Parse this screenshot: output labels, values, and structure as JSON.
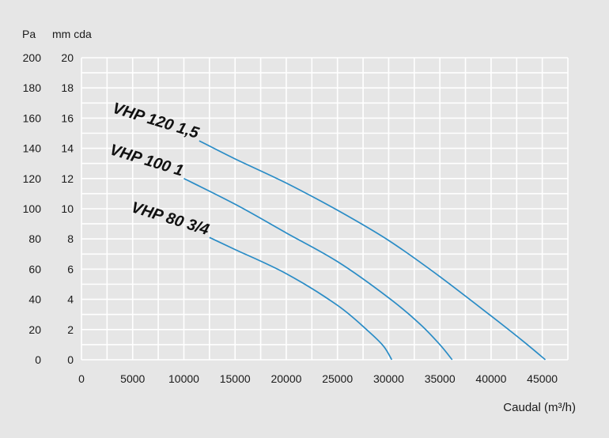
{
  "chart_data": {
    "type": "line",
    "xlabel": "Caudal (m³/h)",
    "y_units_left": "Pa",
    "y_units_right": "mm cda",
    "xlim": [
      0,
      47500
    ],
    "ylim": [
      0,
      20
    ],
    "x_ticks": [
      0,
      5000,
      10000,
      15000,
      20000,
      25000,
      30000,
      35000,
      40000,
      45000
    ],
    "y_ticks_mmcda": [
      0,
      2,
      4,
      6,
      8,
      10,
      12,
      14,
      16,
      18,
      20
    ],
    "y_ticks_pa": [
      0,
      20,
      40,
      60,
      80,
      100,
      120,
      140,
      160,
      180,
      200
    ],
    "grid": true,
    "line_color": "#2a8cc6",
    "series": [
      {
        "name": "VHP 120 1,5",
        "x": [
          11500,
          15000,
          20000,
          25000,
          30000,
          35000,
          40000,
          43000,
          45300
        ],
        "y": [
          14.5,
          13.3,
          11.7,
          9.9,
          7.9,
          5.5,
          2.9,
          1.3,
          0
        ]
      },
      {
        "name": "VHP 100 1",
        "x": [
          10000,
          15000,
          20000,
          25000,
          30000,
          33000,
          35000,
          36200
        ],
        "y": [
          12.0,
          10.3,
          8.4,
          6.5,
          4.1,
          2.4,
          1.0,
          0
        ]
      },
      {
        "name": "VHP 80 3/4",
        "x": [
          12500,
          15000,
          20000,
          25000,
          28000,
          29500,
          30300
        ],
        "y": [
          8.1,
          7.3,
          5.7,
          3.6,
          1.9,
          0.9,
          0
        ]
      }
    ]
  }
}
